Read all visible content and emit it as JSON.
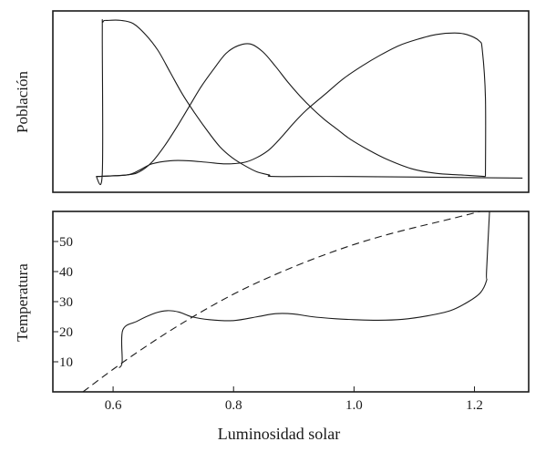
{
  "chart_data": [
    {
      "type": "line",
      "panel": "top",
      "title": "",
      "xlabel": "",
      "ylabel": "Población",
      "xlim": [
        0.52,
        1.29
      ],
      "ylim": [
        -0.1,
        1.05
      ],
      "x_ticks": [],
      "y_ticks": [],
      "grid": false,
      "legend": "none",
      "series": [
        {
          "style": "solid",
          "points": [
            [
              0.59,
              0.0
            ],
            [
              0.6,
              0.02
            ],
            [
              0.6,
              0.9
            ],
            [
              0.601,
              0.98
            ],
            [
              0.61,
              0.99
            ],
            [
              0.63,
              0.99
            ],
            [
              0.65,
              0.97
            ],
            [
              0.67,
              0.9
            ],
            [
              0.69,
              0.8
            ],
            [
              0.71,
              0.66
            ],
            [
              0.73,
              0.52
            ],
            [
              0.75,
              0.4
            ],
            [
              0.77,
              0.29
            ],
            [
              0.79,
              0.19
            ],
            [
              0.81,
              0.12
            ],
            [
              0.83,
              0.07
            ],
            [
              0.85,
              0.03
            ],
            [
              0.87,
              0.01
            ],
            [
              0.88,
              0.0
            ],
            [
              1.0,
              0.0
            ],
            [
              1.28,
              -0.01
            ]
          ]
        },
        {
          "style": "solid",
          "points": [
            [
              0.59,
              0.0
            ],
            [
              0.64,
              0.01
            ],
            [
              0.66,
              0.03
            ],
            [
              0.68,
              0.09
            ],
            [
              0.7,
              0.19
            ],
            [
              0.72,
              0.31
            ],
            [
              0.74,
              0.44
            ],
            [
              0.76,
              0.57
            ],
            [
              0.78,
              0.68
            ],
            [
              0.8,
              0.78
            ],
            [
              0.82,
              0.83
            ],
            [
              0.84,
              0.84
            ],
            [
              0.86,
              0.79
            ],
            [
              0.88,
              0.7
            ],
            [
              0.9,
              0.6
            ],
            [
              0.92,
              0.51
            ],
            [
              0.94,
              0.43
            ],
            [
              0.96,
              0.36
            ],
            [
              0.98,
              0.3
            ],
            [
              1.0,
              0.24
            ],
            [
              1.03,
              0.17
            ],
            [
              1.06,
              0.11
            ],
            [
              1.1,
              0.05
            ],
            [
              1.14,
              0.02
            ],
            [
              1.18,
              0.01
            ],
            [
              1.22,
              0.0
            ]
          ]
        },
        {
          "style": "solid",
          "points": [
            [
              0.59,
              0.0
            ],
            [
              0.64,
              0.01
            ],
            [
              0.66,
              0.04
            ],
            [
              0.68,
              0.08
            ],
            [
              0.71,
              0.1
            ],
            [
              0.74,
              0.1
            ],
            [
              0.77,
              0.09
            ],
            [
              0.8,
              0.08
            ],
            [
              0.83,
              0.09
            ],
            [
              0.85,
              0.12
            ],
            [
              0.87,
              0.17
            ],
            [
              0.89,
              0.25
            ],
            [
              0.91,
              0.34
            ],
            [
              0.93,
              0.42
            ],
            [
              0.96,
              0.52
            ],
            [
              0.99,
              0.62
            ],
            [
              1.02,
              0.7
            ],
            [
              1.05,
              0.77
            ],
            [
              1.08,
              0.83
            ],
            [
              1.11,
              0.87
            ],
            [
              1.14,
              0.9
            ],
            [
              1.17,
              0.91
            ],
            [
              1.19,
              0.9
            ],
            [
              1.21,
              0.86
            ],
            [
              1.215,
              0.8
            ],
            [
              1.22,
              0.5
            ],
            [
              1.22,
              0.0
            ]
          ]
        }
      ]
    },
    {
      "type": "line",
      "panel": "bottom",
      "title": "",
      "xlabel": "Luminosidad solar",
      "ylabel": "Temperatura",
      "xlim": [
        0.5,
        1.29
      ],
      "ylim": [
        0,
        60
      ],
      "x_ticks": [
        0.6,
        0.8,
        1.0,
        1.2
      ],
      "x_tick_labels": [
        "0.6",
        "0.8",
        "1.0",
        "1.2"
      ],
      "y_ticks": [
        10,
        20,
        30,
        40,
        50
      ],
      "y_tick_labels": [
        "10",
        "20",
        "30",
        "40",
        "50"
      ],
      "grid": false,
      "legend": "none",
      "series": [
        {
          "style": "solid",
          "points": [
            [
              0.61,
              8
            ],
            [
              0.615,
              10
            ],
            [
              0.616,
              20.5
            ],
            [
              0.64,
              23.5
            ],
            [
              0.67,
              26.2
            ],
            [
              0.69,
              27
            ],
            [
              0.71,
              26.5
            ],
            [
              0.73,
              25
            ],
            [
              0.76,
              24
            ],
            [
              0.8,
              23.7
            ],
            [
              0.84,
              25
            ],
            [
              0.87,
              26
            ],
            [
              0.9,
              25.9
            ],
            [
              0.93,
              25
            ],
            [
              0.97,
              24.3
            ],
            [
              1.0,
              24
            ],
            [
              1.04,
              23.8
            ],
            [
              1.08,
              24.1
            ],
            [
              1.12,
              25.2
            ],
            [
              1.16,
              27
            ],
            [
              1.19,
              30
            ],
            [
              1.21,
              33
            ],
            [
              1.22,
              37
            ],
            [
              1.22,
              40
            ],
            [
              1.225,
              60
            ]
          ]
        },
        {
          "style": "dashed",
          "points": [
            [
              0.55,
              0
            ],
            [
              0.6,
              7.5
            ],
            [
              0.65,
              14.5
            ],
            [
              0.7,
              21
            ],
            [
              0.75,
              27
            ],
            [
              0.8,
              32.5
            ],
            [
              0.85,
              37.3
            ],
            [
              0.9,
              41.6
            ],
            [
              0.95,
              45.5
            ],
            [
              1.0,
              49
            ],
            [
              1.05,
              52
            ],
            [
              1.1,
              54.6
            ],
            [
              1.15,
              57
            ],
            [
              1.2,
              59.5
            ],
            [
              1.23,
              61
            ]
          ]
        }
      ]
    }
  ]
}
